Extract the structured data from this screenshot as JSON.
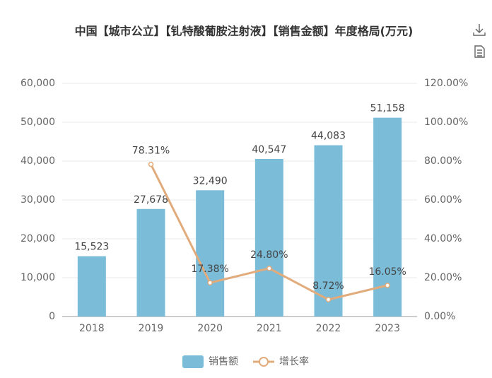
{
  "chart_data": {
    "type": "bar",
    "title": "中国【城市公立】【钆特酸葡胺注射液】【销售金额】年度格局(万元)",
    "categories": [
      "2018",
      "2019",
      "2020",
      "2021",
      "2022",
      "2023"
    ],
    "series": [
      {
        "name": "销售额",
        "type": "bar",
        "color": "#7bbcd8",
        "values": [
          15523,
          27678,
          32490,
          40547,
          44083,
          51158
        ],
        "value_labels": [
          "15,523",
          "27,678",
          "32,490",
          "40,547",
          "44,083",
          "51,158"
        ]
      },
      {
        "name": "增长率",
        "type": "line",
        "axis": "y2",
        "color": "#e2ab7b",
        "values": [
          null,
          78.31,
          17.38,
          24.8,
          8.72,
          16.05
        ],
        "value_labels": [
          null,
          "78.31%",
          "17.38%",
          "24.80%",
          "8.72%",
          "16.05%"
        ]
      }
    ],
    "ylim": [
      0,
      60000
    ],
    "yticks": [
      0,
      {
        "value": 10000,
        "label": "10,000"
      },
      {
        "value": 20000,
        "label": "20,000"
      },
      {
        "value": 30000,
        "label": "30,000"
      },
      {
        "value": 40000,
        "label": "40,000"
      },
      {
        "value": 50000,
        "label": "50,000"
      },
      {
        "value": 60000,
        "label": "60,000"
      }
    ],
    "y2lim": [
      0,
      120
    ],
    "y2ticks": [
      {
        "value": 0,
        "label": "0.00%"
      },
      {
        "value": 20,
        "label": "20.00%"
      },
      {
        "value": 40,
        "label": "40.00%"
      },
      {
        "value": 60,
        "label": "60.00%"
      },
      {
        "value": 80,
        "label": "80.00%"
      },
      {
        "value": 100,
        "label": "100.00%"
      },
      {
        "value": 120,
        "label": "120.00%"
      }
    ],
    "grid": true,
    "legend": "bottom"
  }
}
